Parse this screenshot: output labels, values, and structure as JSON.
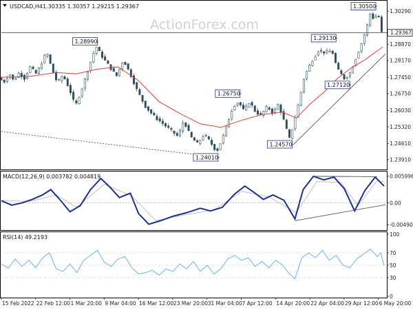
{
  "chart_data": {
    "type": "candlestick",
    "symbol": "USDCAD,H4",
    "ohlc_text": "1.30335 1.30357 1.29215 1.29367",
    "watermark": "ActionForex.com",
    "colors": {
      "candle": "#2f4f5f",
      "ma": "#e03c3c",
      "macd": "#1c2f8c",
      "signal": "#c0c0c0",
      "rsi": "#5aaee6",
      "trendline": "#555555",
      "callout_fill": "#ffffff",
      "callout_border": "#1c2f8c"
    },
    "price_axis": {
      "min": 1.2355,
      "max": 1.3065,
      "ticks": [
        1.3029,
        1.29367,
        1.2887,
        1.2817,
        1.2745,
        1.2675,
        1.2603,
        1.2532,
        1.2461,
        1.2391
      ],
      "tick_labels": [
        "1.30290",
        "1.29367",
        "1.28870",
        "1.28170",
        "1.27450",
        "1.26750",
        "1.26030",
        "1.25320",
        "1.24610",
        "1.23910"
      ],
      "current_price": 1.29367,
      "current_label": "1.29367"
    },
    "x_labels": [
      "15 Feb 2022",
      "22 Feb 12:00",
      "1 Mar 20:00",
      "9 Mar 04:00",
      "16 Mar 12:00",
      "23 Mar 20:00",
      "31 Mar 04:00",
      "7 Apr 12:00",
      "14 Apr 20:00",
      "22 Apr 04:00",
      "29 Apr 12:00",
      "6 May 20:00"
    ],
    "price_path": [
      {
        "t": 0,
        "p": 1.2742
      },
      {
        "t": 8,
        "p": 1.2725
      },
      {
        "t": 16,
        "p": 1.276
      },
      {
        "t": 22,
        "p": 1.273
      },
      {
        "t": 30,
        "p": 1.2765
      },
      {
        "t": 38,
        "p": 1.274
      },
      {
        "t": 46,
        "p": 1.279
      },
      {
        "t": 55,
        "p": 1.276
      },
      {
        "t": 62,
        "p": 1.28
      },
      {
        "t": 70,
        "p": 1.2855
      },
      {
        "t": 78,
        "p": 1.278
      },
      {
        "t": 86,
        "p": 1.272
      },
      {
        "t": 94,
        "p": 1.2755
      },
      {
        "t": 104,
        "p": 1.269
      },
      {
        "t": 112,
        "p": 1.262
      },
      {
        "t": 122,
        "p": 1.27
      },
      {
        "t": 132,
        "p": 1.279
      },
      {
        "t": 142,
        "p": 1.2878
      },
      {
        "t": 152,
        "p": 1.283
      },
      {
        "t": 162,
        "p": 1.279
      },
      {
        "t": 172,
        "p": 1.275
      },
      {
        "t": 182,
        "p": 1.282
      },
      {
        "t": 192,
        "p": 1.276
      },
      {
        "t": 202,
        "p": 1.269
      },
      {
        "t": 214,
        "p": 1.262
      },
      {
        "t": 226,
        "p": 1.258
      },
      {
        "t": 238,
        "p": 1.255
      },
      {
        "t": 250,
        "p": 1.252
      },
      {
        "t": 262,
        "p": 1.249
      },
      {
        "t": 270,
        "p": 1.256
      },
      {
        "t": 280,
        "p": 1.249
      },
      {
        "t": 290,
        "p": 1.246
      },
      {
        "t": 300,
        "p": 1.25
      },
      {
        "t": 308,
        "p": 1.247
      },
      {
        "t": 318,
        "p": 1.2425
      },
      {
        "t": 326,
        "p": 1.248
      },
      {
        "t": 334,
        "p": 1.255
      },
      {
        "t": 342,
        "p": 1.262
      },
      {
        "t": 350,
        "p": 1.264
      },
      {
        "t": 358,
        "p": 1.26
      },
      {
        "t": 366,
        "p": 1.264
      },
      {
        "t": 374,
        "p": 1.26
      },
      {
        "t": 382,
        "p": 1.258
      },
      {
        "t": 392,
        "p": 1.262
      },
      {
        "t": 400,
        "p": 1.259
      },
      {
        "t": 408,
        "p": 1.263
      },
      {
        "t": 416,
        "p": 1.256
      },
      {
        "t": 424,
        "p": 1.248
      },
      {
        "t": 430,
        "p": 1.254
      },
      {
        "t": 438,
        "p": 1.264
      },
      {
        "t": 446,
        "p": 1.275
      },
      {
        "t": 456,
        "p": 1.281
      },
      {
        "t": 466,
        "p": 1.286
      },
      {
        "t": 476,
        "p": 1.285
      },
      {
        "t": 486,
        "p": 1.286
      },
      {
        "t": 494,
        "p": 1.278
      },
      {
        "t": 504,
        "p": 1.274
      },
      {
        "t": 512,
        "p": 1.276
      },
      {
        "t": 520,
        "p": 1.282
      },
      {
        "t": 528,
        "p": 1.288
      },
      {
        "t": 536,
        "p": 1.295
      },
      {
        "t": 542,
        "p": 1.302
      },
      {
        "t": 548,
        "p": 1.299
      },
      {
        "t": 553,
        "p": 1.303
      },
      {
        "t": 558,
        "p": 1.2937
      }
    ],
    "ma_path": [
      {
        "t": 0,
        "p": 1.2745
      },
      {
        "t": 40,
        "p": 1.2748
      },
      {
        "t": 80,
        "p": 1.2765
      },
      {
        "t": 110,
        "p": 1.276
      },
      {
        "t": 140,
        "p": 1.278
      },
      {
        "t": 170,
        "p": 1.279
      },
      {
        "t": 200,
        "p": 1.273
      },
      {
        "t": 230,
        "p": 1.264
      },
      {
        "t": 260,
        "p": 1.259
      },
      {
        "t": 290,
        "p": 1.2545
      },
      {
        "t": 320,
        "p": 1.253
      },
      {
        "t": 350,
        "p": 1.256
      },
      {
        "t": 380,
        "p": 1.2585
      },
      {
        "t": 410,
        "p": 1.2595
      },
      {
        "t": 430,
        "p": 1.257
      },
      {
        "t": 450,
        "p": 1.263
      },
      {
        "t": 470,
        "p": 1.268
      },
      {
        "t": 490,
        "p": 1.274
      },
      {
        "t": 510,
        "p": 1.2785
      },
      {
        "t": 530,
        "p": 1.282
      },
      {
        "t": 556,
        "p": 1.2875
      }
    ],
    "callouts": [
      {
        "label": "1.28990",
        "t": 142,
        "p": 1.2899,
        "side": "left"
      },
      {
        "label": "1.26750",
        "t": 350,
        "p": 1.2675,
        "side": "left"
      },
      {
        "label": "1.24010",
        "t": 318,
        "p": 1.2401,
        "side": "left"
      },
      {
        "label": "1.24570",
        "t": 426,
        "p": 1.2457,
        "side": "left"
      },
      {
        "label": "1.29130",
        "t": 490,
        "p": 1.2913,
        "side": "left"
      },
      {
        "label": "1.27120",
        "t": 510,
        "p": 1.2712,
        "side": "left"
      },
      {
        "label": "1.30500",
        "t": 548,
        "p": 1.305,
        "side": "left"
      }
    ],
    "price_trendlines": [
      {
        "t1": 0,
        "p1": 1.2512,
        "t2": 318,
        "p2": 1.2401,
        "style": "dotted"
      },
      {
        "t1": 426,
        "p1": 1.2457,
        "t2": 560,
        "p2": 1.2845,
        "style": "solid"
      }
    ],
    "macd": {
      "label": "MACD(12,26,9) 0.003782 0.004819",
      "min": -0.0058,
      "max": 0.0066,
      "ticks": [
        0.005996,
        0.0,
        -0.004901
      ],
      "tick_labels": [
        "0.005996",
        "0.00",
        "-0.004901"
      ],
      "path": [
        {
          "t": 0,
          "v": 0.0005
        },
        {
          "t": 15,
          "v": -0.0005
        },
        {
          "t": 30,
          "v": 0.0
        },
        {
          "t": 45,
          "v": 0.0008
        },
        {
          "t": 60,
          "v": 0.0018
        },
        {
          "t": 72,
          "v": 0.003
        },
        {
          "t": 85,
          "v": 0.0008
        },
        {
          "t": 100,
          "v": -0.002
        },
        {
          "t": 115,
          "v": -0.0006
        },
        {
          "t": 130,
          "v": 0.003
        },
        {
          "t": 145,
          "v": 0.0055
        },
        {
          "t": 158,
          "v": 0.0036
        },
        {
          "t": 172,
          "v": 0.0012
        },
        {
          "t": 188,
          "v": 0.0022
        },
        {
          "t": 200,
          "v": -0.0024
        },
        {
          "t": 215,
          "v": -0.0048
        },
        {
          "t": 232,
          "v": -0.004
        },
        {
          "t": 250,
          "v": -0.003
        },
        {
          "t": 270,
          "v": -0.0022
        },
        {
          "t": 290,
          "v": -0.0012
        },
        {
          "t": 305,
          "v": -0.0018
        },
        {
          "t": 322,
          "v": -0.001
        },
        {
          "t": 340,
          "v": 0.002
        },
        {
          "t": 355,
          "v": 0.0038
        },
        {
          "t": 368,
          "v": 0.0024
        },
        {
          "t": 382,
          "v": 0.0008
        },
        {
          "t": 396,
          "v": 0.0018
        },
        {
          "t": 412,
          "v": 0.0006
        },
        {
          "t": 428,
          "v": -0.0036
        },
        {
          "t": 440,
          "v": 0.003
        },
        {
          "t": 455,
          "v": 0.006
        },
        {
          "t": 470,
          "v": 0.0052
        },
        {
          "t": 485,
          "v": 0.0058
        },
        {
          "t": 500,
          "v": 0.0032
        },
        {
          "t": 515,
          "v": -0.0018
        },
        {
          "t": 530,
          "v": 0.0028
        },
        {
          "t": 545,
          "v": 0.0058
        },
        {
          "t": 558,
          "v": 0.0038
        }
      ],
      "signal_path": [
        {
          "t": 0,
          "v": 0.0006
        },
        {
          "t": 40,
          "v": 0.0003
        },
        {
          "t": 80,
          "v": 0.0018
        },
        {
          "t": 110,
          "v": -0.001
        },
        {
          "t": 150,
          "v": 0.0042
        },
        {
          "t": 190,
          "v": 0.0016
        },
        {
          "t": 225,
          "v": -0.004
        },
        {
          "t": 270,
          "v": -0.0026
        },
        {
          "t": 310,
          "v": -0.0016
        },
        {
          "t": 350,
          "v": 0.0026
        },
        {
          "t": 390,
          "v": 0.0014
        },
        {
          "t": 430,
          "v": -0.0022
        },
        {
          "t": 460,
          "v": 0.0048
        },
        {
          "t": 495,
          "v": 0.0046
        },
        {
          "t": 520,
          "v": -0.0006
        },
        {
          "t": 548,
          "v": 0.005
        },
        {
          "t": 558,
          "v": 0.0048
        }
      ],
      "trendlines": [
        {
          "t1": 428,
          "v1": -0.004,
          "t2": 560,
          "v2": -0.0004
        },
        {
          "t1": 455,
          "v1": 0.006,
          "t2": 548,
          "v2": 0.0059
        }
      ]
    },
    "rsi": {
      "label": "RSI(14) 49.2193",
      "min": 0,
      "max": 100,
      "ticks": [
        100,
        70,
        50,
        30,
        0
      ],
      "tick_labels": [
        "100",
        "70",
        "50",
        "30",
        "0"
      ],
      "path": [
        {
          "t": 0,
          "v": 52
        },
        {
          "t": 10,
          "v": 45
        },
        {
          "t": 20,
          "v": 60
        },
        {
          "t": 30,
          "v": 48
        },
        {
          "t": 40,
          "v": 58
        },
        {
          "t": 50,
          "v": 46
        },
        {
          "t": 60,
          "v": 62
        },
        {
          "t": 70,
          "v": 70
        },
        {
          "t": 80,
          "v": 44
        },
        {
          "t": 90,
          "v": 40
        },
        {
          "t": 100,
          "v": 52
        },
        {
          "t": 110,
          "v": 38
        },
        {
          "t": 120,
          "v": 58
        },
        {
          "t": 130,
          "v": 66
        },
        {
          "t": 140,
          "v": 74
        },
        {
          "t": 150,
          "v": 55
        },
        {
          "t": 160,
          "v": 48
        },
        {
          "t": 170,
          "v": 60
        },
        {
          "t": 180,
          "v": 64
        },
        {
          "t": 190,
          "v": 46
        },
        {
          "t": 200,
          "v": 36
        },
        {
          "t": 210,
          "v": 38
        },
        {
          "t": 220,
          "v": 42
        },
        {
          "t": 230,
          "v": 34
        },
        {
          "t": 240,
          "v": 44
        },
        {
          "t": 250,
          "v": 40
        },
        {
          "t": 260,
          "v": 52
        },
        {
          "t": 270,
          "v": 44
        },
        {
          "t": 280,
          "v": 56
        },
        {
          "t": 290,
          "v": 40
        },
        {
          "t": 300,
          "v": 50
        },
        {
          "t": 310,
          "v": 36
        },
        {
          "t": 320,
          "v": 44
        },
        {
          "t": 330,
          "v": 60
        },
        {
          "t": 340,
          "v": 66
        },
        {
          "t": 350,
          "v": 58
        },
        {
          "t": 360,
          "v": 62
        },
        {
          "t": 370,
          "v": 48
        },
        {
          "t": 380,
          "v": 56
        },
        {
          "t": 390,
          "v": 46
        },
        {
          "t": 400,
          "v": 58
        },
        {
          "t": 410,
          "v": 50
        },
        {
          "t": 420,
          "v": 36
        },
        {
          "t": 428,
          "v": 28
        },
        {
          "t": 438,
          "v": 62
        },
        {
          "t": 448,
          "v": 70
        },
        {
          "t": 458,
          "v": 62
        },
        {
          "t": 468,
          "v": 74
        },
        {
          "t": 478,
          "v": 58
        },
        {
          "t": 488,
          "v": 66
        },
        {
          "t": 498,
          "v": 50
        },
        {
          "t": 508,
          "v": 46
        },
        {
          "t": 518,
          "v": 60
        },
        {
          "t": 528,
          "v": 68
        },
        {
          "t": 538,
          "v": 76
        },
        {
          "t": 548,
          "v": 64
        },
        {
          "t": 553,
          "v": 70
        },
        {
          "t": 558,
          "v": 49
        }
      ]
    }
  }
}
